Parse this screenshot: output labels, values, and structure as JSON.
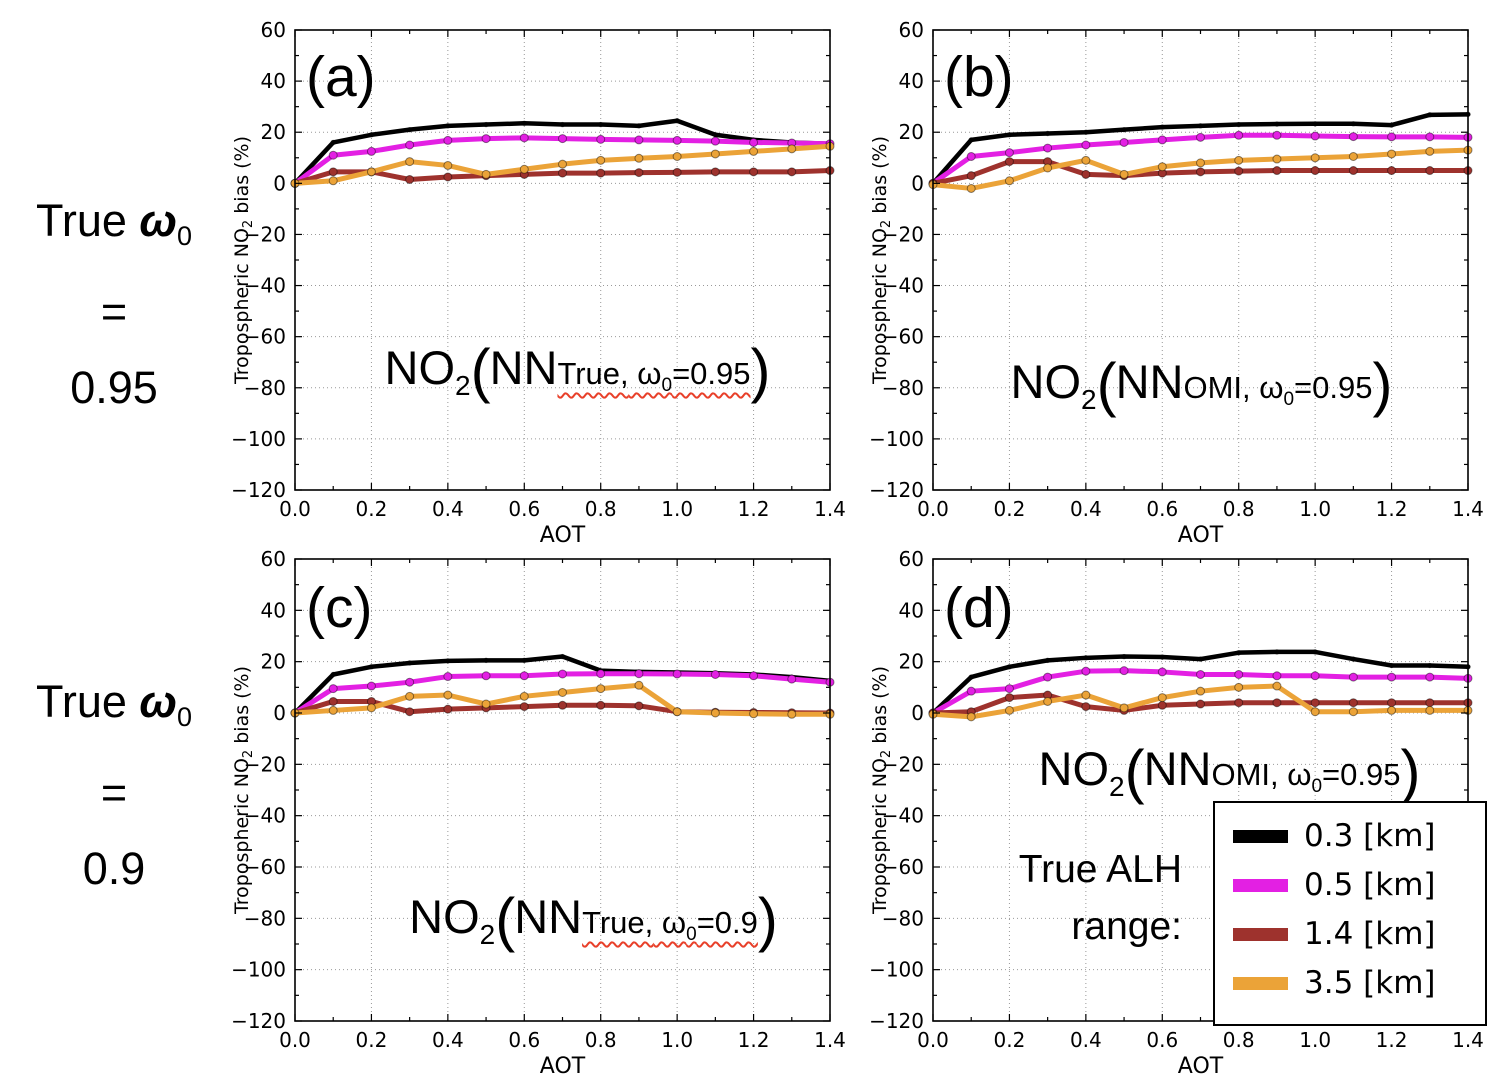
{
  "row_labels": [
    {
      "prefix": "True ",
      "omega": "ω",
      "omega_sub": "0",
      "eq": "=",
      "value": "0.95"
    },
    {
      "prefix": "True ",
      "omega": "ω",
      "omega_sub": "0",
      "eq": "=",
      "value": "0.9"
    }
  ],
  "axes": {
    "xlabel": "AOT",
    "ylabel_pre": "Tropospheric NO",
    "ylabel_sub": "2",
    "ylabel_post": " bias (%)",
    "xlim": [
      0,
      1.4
    ],
    "ylim": [
      -120,
      60
    ],
    "x_tick_values": [
      0,
      0.2,
      0.4,
      0.6,
      0.8,
      1.0,
      1.2,
      1.4
    ],
    "x_tick_labels": [
      "0.0",
      "0.2",
      "0.4",
      "0.6",
      "0.8",
      "1.0",
      "1.2",
      "1.4"
    ],
    "y_tick_values": [
      60,
      40,
      20,
      0,
      -20,
      -40,
      -60,
      -80,
      -100,
      -120
    ],
    "y_tick_labels": [
      "60",
      "40",
      "20",
      "0",
      "−20",
      "−40",
      "−60",
      "−80",
      "−100",
      "−120"
    ],
    "grid": true
  },
  "legend": {
    "title_lines": [
      "True ALH",
      "range:"
    ],
    "entries": [
      {
        "label": "0.3 [km]",
        "color": "#000000"
      },
      {
        "label": "0.5 [km]",
        "color": "#E320E3"
      },
      {
        "label": "1.4 [km]",
        "color": "#9E322D"
      },
      {
        "label": "3.5 [km]",
        "color": "#EBA338"
      }
    ]
  },
  "chart_data": [
    {
      "type": "line",
      "panel_label": "(a)",
      "annotation": {
        "main": "NO",
        "main_sub": "2",
        "paren_open": "(",
        "nn": "NN",
        "model": "True,",
        "omega": " ω",
        "omega_sub": "0",
        "value": "=0.95",
        "paren_close": ")",
        "underline": true
      },
      "xlabel": "AOT",
      "ylabel": "Tropospheric NO2 bias (%)",
      "xlim": [
        0,
        1.4
      ],
      "ylim": [
        -120,
        60
      ],
      "x": [
        0,
        0.1,
        0.2,
        0.3,
        0.4,
        0.5,
        0.6,
        0.7,
        0.8,
        0.9,
        1.0,
        1.1,
        1.2,
        1.3,
        1.4
      ],
      "series": [
        {
          "name": "0.3 [km]",
          "color": "#000000",
          "values": [
            0,
            16,
            19,
            21,
            22.5,
            23,
            23.5,
            23,
            23,
            22.5,
            24.5,
            19,
            17,
            16,
            15.5
          ]
        },
        {
          "name": "0.5 [km]",
          "color": "#E320E3",
          "values": [
            0,
            11,
            12.5,
            15,
            16.8,
            17.5,
            17.8,
            17.5,
            17.2,
            17,
            16.8,
            16.5,
            16,
            15.8,
            15.5
          ]
        },
        {
          "name": "1.4 [km]",
          "color": "#9E322D",
          "values": [
            0,
            4.5,
            4.5,
            1.5,
            2.5,
            3,
            3.5,
            4,
            4,
            4.2,
            4.3,
            4.5,
            4.5,
            4.5,
            5
          ]
        },
        {
          "name": "3.5 [km]",
          "color": "#EBA338",
          "values": [
            0,
            1,
            4.5,
            8.5,
            7,
            3.5,
            5.5,
            7.5,
            9,
            9.8,
            10.5,
            11.5,
            12.5,
            13.5,
            14.5
          ]
        }
      ]
    },
    {
      "type": "line",
      "panel_label": "(b)",
      "annotation": {
        "main": "NO",
        "main_sub": "2",
        "paren_open": "(",
        "nn": "NN",
        "model": "OMI,",
        "omega": " ω",
        "omega_sub": "0",
        "value": "=0.95",
        "paren_close": ")",
        "underline": false
      },
      "xlabel": "AOT",
      "ylabel": "Tropospheric NO2 bias (%)",
      "xlim": [
        0,
        1.4
      ],
      "ylim": [
        -120,
        60
      ],
      "x": [
        0,
        0.1,
        0.2,
        0.3,
        0.4,
        0.5,
        0.6,
        0.7,
        0.8,
        0.9,
        1.0,
        1.1,
        1.2,
        1.3,
        1.4
      ],
      "series": [
        {
          "name": "0.3 [km]",
          "color": "#000000",
          "values": [
            0,
            17,
            19,
            19.5,
            20,
            21,
            22,
            22.5,
            23,
            23.2,
            23.3,
            23.3,
            22.8,
            26.8,
            27
          ]
        },
        {
          "name": "0.5 [km]",
          "color": "#E320E3",
          "values": [
            0,
            10.5,
            12,
            13.8,
            15,
            16,
            17,
            18,
            18.8,
            18.8,
            18.5,
            18.3,
            18.2,
            18.2,
            18
          ]
        },
        {
          "name": "1.4 [km]",
          "color": "#9E322D",
          "values": [
            0,
            3,
            8.5,
            8.5,
            3.5,
            3,
            4,
            4.5,
            4.8,
            5,
            5,
            5,
            5,
            5,
            5
          ]
        },
        {
          "name": "3.5 [km]",
          "color": "#EBA338",
          "values": [
            -0.5,
            -2,
            1,
            6,
            9,
            3.5,
            6.5,
            8,
            9,
            9.5,
            10,
            10.5,
            11.5,
            12.5,
            13
          ]
        }
      ]
    },
    {
      "type": "line",
      "panel_label": "(c)",
      "annotation": {
        "main": "NO",
        "main_sub": "2",
        "paren_open": "(",
        "nn": "NN",
        "model": "True,",
        "omega": " ω",
        "omega_sub": "0",
        "value": "=0.9",
        "paren_close": ")",
        "underline": true
      },
      "xlabel": "AOT",
      "ylabel": "Tropospheric NO2 bias (%)",
      "xlim": [
        0,
        1.4
      ],
      "ylim": [
        -120,
        60
      ],
      "x": [
        0,
        0.1,
        0.2,
        0.3,
        0.4,
        0.5,
        0.6,
        0.7,
        0.8,
        0.9,
        1.0,
        1.1,
        1.2,
        1.3,
        1.4
      ],
      "series": [
        {
          "name": "0.3 [km]",
          "color": "#000000",
          "values": [
            0,
            15,
            18,
            19.5,
            20.3,
            20.5,
            20.5,
            22,
            16.5,
            16,
            15.8,
            15.5,
            15,
            14,
            12.5
          ]
        },
        {
          "name": "0.5 [km]",
          "color": "#E320E3",
          "values": [
            0,
            9.5,
            10.5,
            12,
            14.2,
            14.5,
            14.5,
            15.2,
            15.3,
            15.3,
            15.2,
            15,
            14.5,
            13.2,
            12
          ]
        },
        {
          "name": "1.4 [km]",
          "color": "#9E322D",
          "values": [
            0,
            4.5,
            4.5,
            0.5,
            1.5,
            2,
            2.5,
            3,
            3,
            2.8,
            0.5,
            0.3,
            0.2,
            0.1,
            0
          ]
        },
        {
          "name": "3.5 [km]",
          "color": "#EBA338",
          "values": [
            0,
            1,
            2,
            6.5,
            7,
            3.5,
            6.5,
            8,
            9.5,
            10.8,
            0.5,
            0,
            -0.3,
            -0.5,
            -0.5
          ]
        }
      ]
    },
    {
      "type": "line",
      "panel_label": "(d)",
      "annotation": {
        "main": "NO",
        "main_sub": "2",
        "paren_open": "(",
        "nn": "NN",
        "model": "OMI,",
        "omega": " ω",
        "omega_sub": "0",
        "value": "=0.95",
        "paren_close": ")",
        "underline": false
      },
      "xlabel": "AOT",
      "ylabel": "Tropospheric NO2 bias (%)",
      "xlim": [
        0,
        1.4
      ],
      "ylim": [
        -120,
        60
      ],
      "x": [
        0,
        0.1,
        0.2,
        0.3,
        0.4,
        0.5,
        0.6,
        0.7,
        0.8,
        0.9,
        1.0,
        1.1,
        1.2,
        1.3,
        1.4
      ],
      "series": [
        {
          "name": "0.3 [km]",
          "color": "#000000",
          "values": [
            0,
            14,
            18,
            20.5,
            21.5,
            22,
            21.8,
            21,
            23.5,
            23.8,
            23.8,
            21,
            18.5,
            18.5,
            18
          ]
        },
        {
          "name": "0.5 [km]",
          "color": "#E320E3",
          "values": [
            0,
            8.5,
            9.5,
            14,
            16.3,
            16.5,
            16,
            15,
            15,
            14.5,
            14.5,
            14,
            14,
            14,
            13.5
          ]
        },
        {
          "name": "1.4 [km]",
          "color": "#9E322D",
          "values": [
            0,
            0.5,
            6,
            7,
            2.5,
            1,
            3,
            3.5,
            4,
            4,
            4,
            4,
            4,
            4,
            4
          ]
        },
        {
          "name": "3.5 [km]",
          "color": "#EBA338",
          "values": [
            -0.5,
            -1.5,
            1,
            4.5,
            7,
            2,
            6,
            8.5,
            10,
            10.5,
            0.5,
            0.5,
            1,
            1,
            1
          ]
        }
      ]
    }
  ]
}
